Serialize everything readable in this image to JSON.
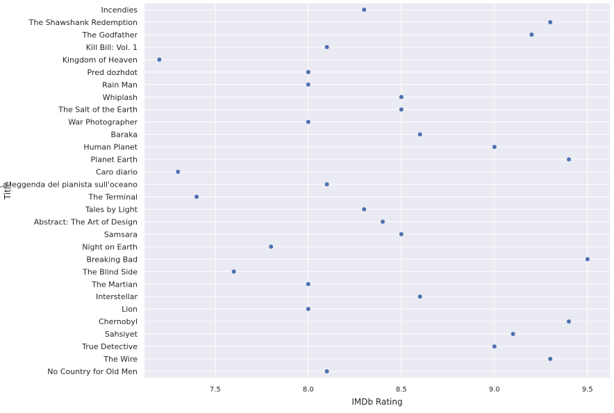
{
  "chart_data": {
    "type": "scatter",
    "title": "",
    "xlabel": "IMDb Rating",
    "ylabel": "Title",
    "xlim": [
      7.12,
      9.62
    ],
    "xticks": [
      7.5,
      8.0,
      8.5,
      9.0,
      9.5
    ],
    "xtick_labels": [
      "7.5",
      "8.0",
      "8.5",
      "9.0",
      "9.5"
    ],
    "grid": true,
    "marker_color": "#4c72b0",
    "background_color": "#eaeaf2",
    "grid_color": "#ffffff",
    "points": [
      {
        "title": "Incendies",
        "rating": 8.3
      },
      {
        "title": "The Shawshank Redemption",
        "rating": 9.3
      },
      {
        "title": "The Godfather",
        "rating": 9.2
      },
      {
        "title": "Kill Bill: Vol. 1",
        "rating": 8.1
      },
      {
        "title": "Kingdom of Heaven",
        "rating": 7.2
      },
      {
        "title": "Pred dozhdot",
        "rating": 8.0
      },
      {
        "title": "Rain Man",
        "rating": 8.0
      },
      {
        "title": "Whiplash",
        "rating": 8.5
      },
      {
        "title": "The Salt of the Earth",
        "rating": 8.5
      },
      {
        "title": "War Photographer",
        "rating": 8.0
      },
      {
        "title": "Baraka",
        "rating": 8.6
      },
      {
        "title": "Human Planet",
        "rating": 9.0
      },
      {
        "title": "Planet Earth",
        "rating": 9.4
      },
      {
        "title": "Caro diario",
        "rating": 7.3
      },
      {
        "title": "La leggenda del pianista sull'oceano",
        "rating": 8.1
      },
      {
        "title": "The Terminal",
        "rating": 7.4
      },
      {
        "title": "Tales by Light",
        "rating": 8.3
      },
      {
        "title": "Abstract: The Art of Design",
        "rating": 8.4
      },
      {
        "title": "Samsara",
        "rating": 8.5
      },
      {
        "title": "Night on Earth",
        "rating": 7.8
      },
      {
        "title": "Breaking Bad",
        "rating": 9.5
      },
      {
        "title": "The Blind Side",
        "rating": 7.6
      },
      {
        "title": "The Martian",
        "rating": 8.0
      },
      {
        "title": "Interstellar",
        "rating": 8.6
      },
      {
        "title": "Lion",
        "rating": 8.0
      },
      {
        "title": "Chernobyl",
        "rating": 9.4
      },
      {
        "title": "Sahsiyet",
        "rating": 9.1
      },
      {
        "title": "True Detective",
        "rating": 9.0
      },
      {
        "title": "The Wire",
        "rating": 9.3
      },
      {
        "title": "No Country for Old Men",
        "rating": 8.1
      }
    ]
  }
}
